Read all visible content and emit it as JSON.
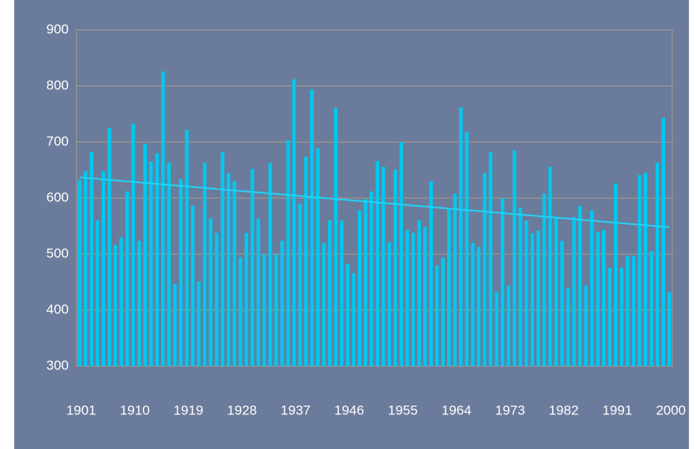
{
  "chart_data": {
    "type": "bar",
    "categories": [
      "1901",
      null,
      null,
      null,
      null,
      null,
      null,
      null,
      null,
      "1910",
      null,
      null,
      null,
      null,
      null,
      null,
      null,
      null,
      "1919",
      null,
      null,
      null,
      null,
      null,
      null,
      null,
      null,
      "1928",
      null,
      null,
      null,
      null,
      null,
      null,
      null,
      null,
      "1937",
      null,
      null,
      null,
      null,
      null,
      null,
      null,
      null,
      "1946",
      null,
      null,
      null,
      null,
      null,
      null,
      null,
      null,
      "1955",
      null,
      null,
      null,
      null,
      null,
      null,
      null,
      null,
      "1964",
      null,
      null,
      null,
      null,
      null,
      null,
      null,
      null,
      "1973",
      null,
      null,
      null,
      null,
      null,
      null,
      null,
      null,
      "1982",
      null,
      null,
      null,
      null,
      null,
      null,
      null,
      null,
      "1991",
      null,
      null,
      null,
      null,
      null,
      null,
      null,
      null,
      "2000"
    ],
    "values": [
      632,
      648,
      682,
      560,
      648,
      725,
      516,
      530,
      612,
      733,
      524,
      697,
      665,
      680,
      826,
      663,
      447,
      634,
      722,
      586,
      451,
      663,
      564,
      538,
      682,
      645,
      630,
      494,
      538,
      652,
      563,
      500,
      663,
      500,
      524,
      703,
      812,
      590,
      674,
      794,
      689,
      520,
      560,
      761,
      560,
      483,
      466,
      578,
      598,
      612,
      666,
      656,
      521,
      651,
      700,
      543,
      538,
      560,
      549,
      630,
      480,
      494,
      580,
      608,
      762,
      718,
      520,
      513,
      645,
      682,
      433,
      600,
      444,
      685,
      583,
      560,
      537,
      542,
      608,
      656,
      567,
      524,
      440,
      566,
      586,
      444,
      578,
      540,
      543,
      476,
      626,
      476,
      497,
      496,
      641,
      645,
      505,
      663,
      743,
      432
    ],
    "color": "#00c8f0",
    "trend": [
      637,
      548
    ],
    "trend_color": "#20d4f8",
    "ylim": [
      300,
      900
    ],
    "yticks": [
      300,
      400,
      500,
      600,
      700,
      800,
      900
    ],
    "grid": true
  }
}
